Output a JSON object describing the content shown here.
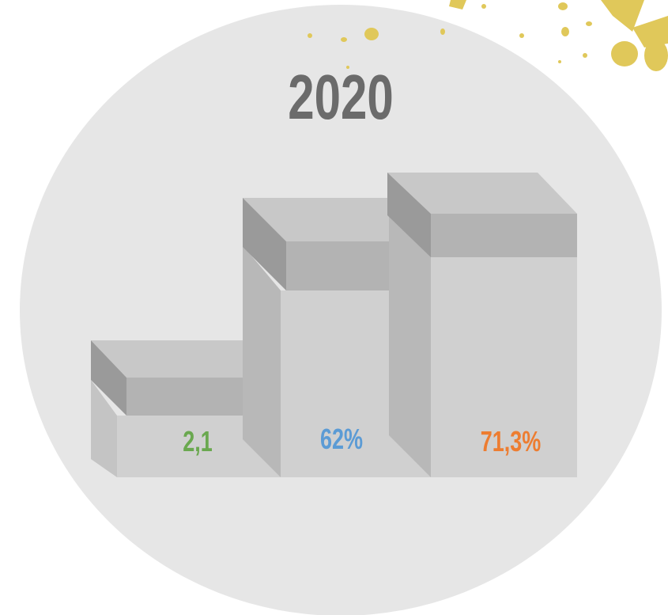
{
  "title": "2020",
  "items": [
    {
      "label": "2,1",
      "color": "#6aa84f"
    },
    {
      "label": "62%",
      "color": "#5b9bd5"
    },
    {
      "label": "71,3%",
      "color": "#ed7d31"
    }
  ]
}
